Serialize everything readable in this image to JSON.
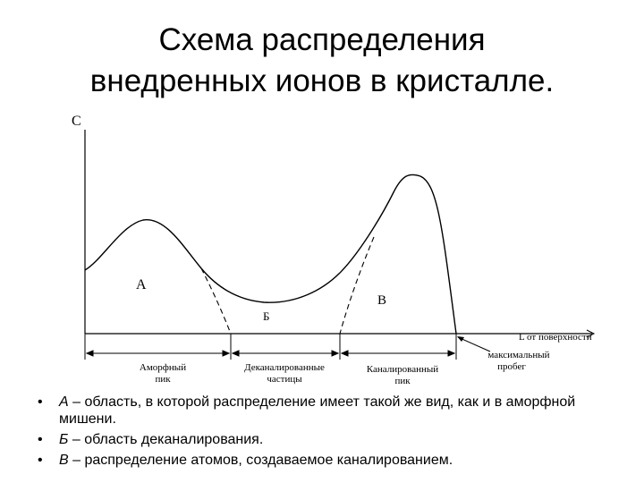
{
  "title": {
    "line1": "Схема распределения",
    "line2": "внедренных ионов в кристалле."
  },
  "diagram": {
    "axis_y_label": "C",
    "axis_x_label": "L от поверхности",
    "region_labels": {
      "a": "А",
      "b": "Б",
      "v": "В"
    },
    "segments": {
      "amorphous": {
        "line1": "Аморфный",
        "line2": "пик"
      },
      "dechanneled": {
        "line1": "Деканалированные",
        "line2": "частицы"
      },
      "channeled": {
        "line1": "Каналированный",
        "line2": "пик"
      },
      "max_range": {
        "line1": "максимальный",
        "line2": "пробег"
      }
    },
    "colors": {
      "stroke": "#000000"
    }
  },
  "bullets": [
    {
      "marker": "•",
      "key": "А",
      "text": " – область, в которой распределение имеет такой же вид, как и в аморфной мишени."
    },
    {
      "marker": "•",
      "key": "Б",
      "text": " – область деканалирования."
    },
    {
      "marker": "•",
      "key": "В",
      "text": " – распределение атомов, создаваемое каналированием."
    }
  ]
}
